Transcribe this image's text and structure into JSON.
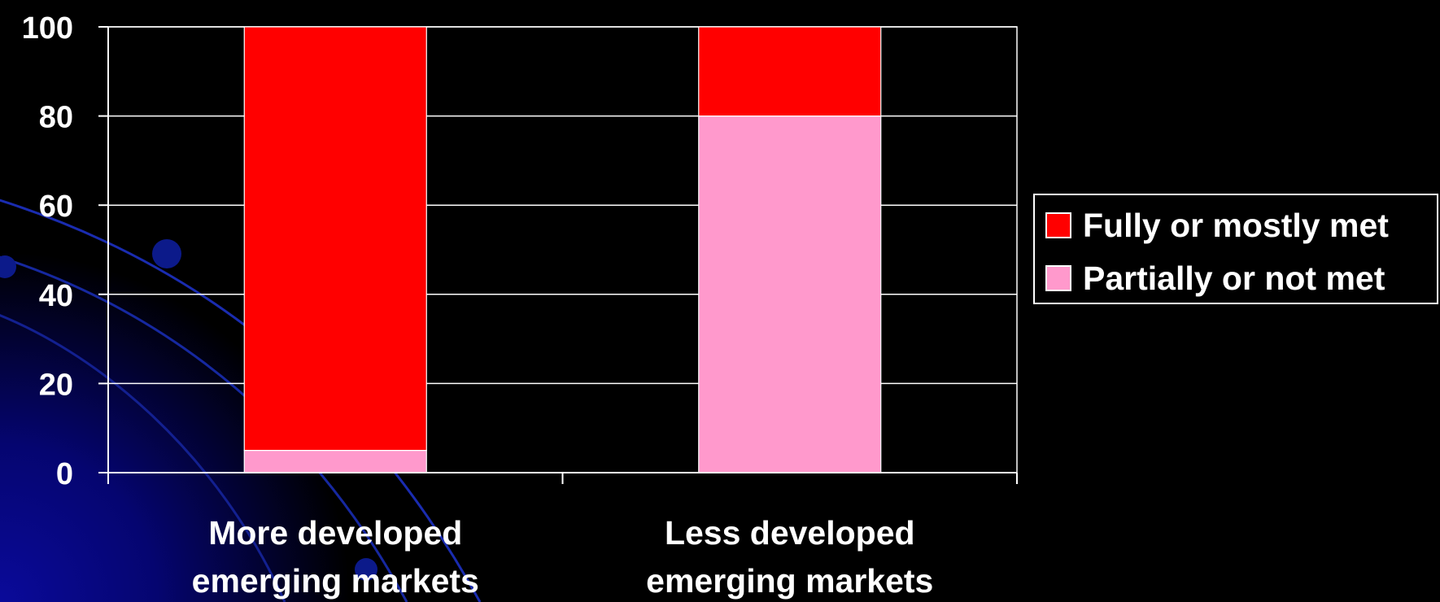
{
  "chart_data": {
    "type": "bar",
    "stacked": true,
    "categories": [
      [
        "More developed",
        "emerging markets"
      ],
      [
        "Less developed",
        "emerging markets"
      ]
    ],
    "series": [
      {
        "name": "Partially or not met",
        "values": [
          5,
          80
        ],
        "color": "#ff99cc"
      },
      {
        "name": "Fully or mostly met",
        "values": [
          95,
          20
        ],
        "color": "#ff0000"
      }
    ],
    "legend_order": [
      1,
      0
    ],
    "yticks": [
      0,
      20,
      40,
      60,
      80,
      100
    ],
    "ylim": [
      0,
      100
    ],
    "grid": true,
    "legend_position": "right",
    "colors": {
      "background": "#000000",
      "axis": "#ffffff",
      "gradient": "#000080"
    }
  }
}
